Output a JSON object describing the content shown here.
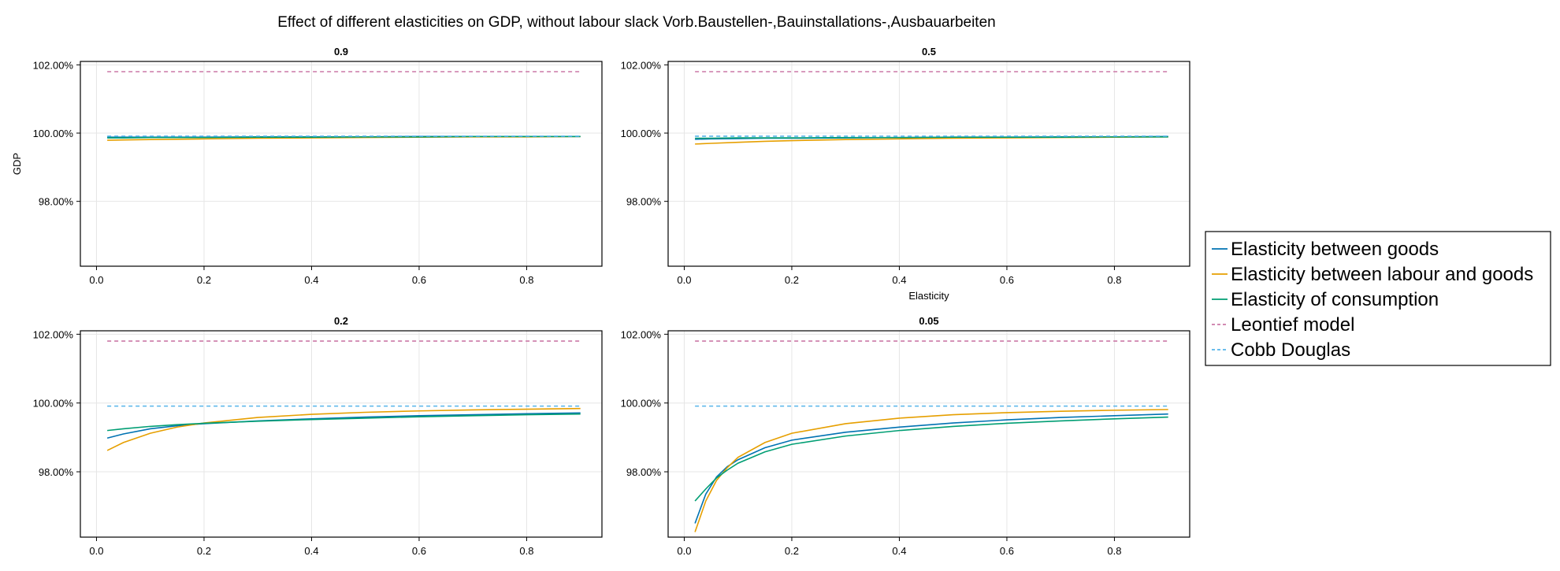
{
  "figure": {
    "title": "Effect of different elasticities on GDP, without labour slack Vorb.Baustellen-,Bauinstallations-,Ausbauarbeiten"
  },
  "legend": {
    "position": "right",
    "entries": [
      {
        "label": "Elasticity between goods",
        "color": "#0072B2",
        "style": "solid"
      },
      {
        "label": "Elasticity between labour and goods",
        "color": "#E69F00",
        "style": "solid"
      },
      {
        "label": "Elasticity of consumption",
        "color": "#009E73",
        "style": "solid"
      },
      {
        "label": "Leontief model",
        "color": "#CC79A7",
        "style": "dashed"
      },
      {
        "label": "Cobb Douglas",
        "color": "#56B4E9",
        "style": "dashed"
      }
    ]
  },
  "chart_data": [
    {
      "type": "line",
      "title": "0.9",
      "xlabel": "",
      "ylabel": "GDP",
      "xlim": [
        -0.03,
        0.94
      ],
      "ylim": [
        96.1,
        102.1
      ],
      "grid": true,
      "x_ticks": [
        "0.0",
        "0.2",
        "0.4",
        "0.6",
        "0.8"
      ],
      "y_ticks": [
        "98.00%",
        "100.00%",
        "102.00%"
      ],
      "x": [
        0.02,
        0.05,
        0.1,
        0.15,
        0.2,
        0.3,
        0.4,
        0.5,
        0.6,
        0.7,
        0.8,
        0.9
      ],
      "series": [
        {
          "name": "Elasticity between goods",
          "values": [
            99.88,
            99.88,
            99.88,
            99.88,
            99.88,
            99.89,
            99.89,
            99.89,
            99.9,
            99.9,
            99.9,
            99.9
          ]
        },
        {
          "name": "Elasticity between labour and goods",
          "values": [
            99.79,
            99.8,
            99.81,
            99.82,
            99.83,
            99.85,
            99.86,
            99.87,
            99.88,
            99.89,
            99.89,
            99.9
          ]
        },
        {
          "name": "Elasticity of consumption",
          "values": [
            99.86,
            99.86,
            99.87,
            99.87,
            99.87,
            99.88,
            99.88,
            99.89,
            99.89,
            99.9,
            99.9,
            99.9
          ]
        },
        {
          "name": "Leontief model",
          "values": [
            101.8,
            101.8,
            101.8,
            101.8,
            101.8,
            101.8,
            101.8,
            101.8,
            101.8,
            101.8,
            101.8,
            101.8
          ]
        },
        {
          "name": "Cobb Douglas",
          "values": [
            99.91,
            99.91,
            99.91,
            99.91,
            99.91,
            99.91,
            99.91,
            99.91,
            99.91,
            99.91,
            99.91,
            99.91
          ]
        }
      ]
    },
    {
      "type": "line",
      "title": "0.5",
      "xlabel": "Elasticity",
      "ylabel": "",
      "xlim": [
        -0.03,
        0.94
      ],
      "ylim": [
        96.1,
        102.1
      ],
      "grid": true,
      "x_ticks": [
        "0.0",
        "0.2",
        "0.4",
        "0.6",
        "0.8"
      ],
      "y_ticks": [
        "98.00%",
        "100.00%",
        "102.00%"
      ],
      "x": [
        0.02,
        0.05,
        0.1,
        0.15,
        0.2,
        0.3,
        0.4,
        0.5,
        0.6,
        0.7,
        0.8,
        0.9
      ],
      "series": [
        {
          "name": "Elasticity between goods",
          "values": [
            99.82,
            99.83,
            99.84,
            99.85,
            99.85,
            99.86,
            99.87,
            99.88,
            99.88,
            99.89,
            99.89,
            99.9
          ]
        },
        {
          "name": "Elasticity between labour and goods",
          "values": [
            99.68,
            99.7,
            99.73,
            99.76,
            99.78,
            99.81,
            99.83,
            99.85,
            99.86,
            99.87,
            99.88,
            99.89
          ]
        },
        {
          "name": "Elasticity of consumption",
          "values": [
            99.85,
            99.85,
            99.86,
            99.86,
            99.86,
            99.87,
            99.87,
            99.88,
            99.88,
            99.88,
            99.89,
            99.89
          ]
        },
        {
          "name": "Leontief model",
          "values": [
            101.8,
            101.8,
            101.8,
            101.8,
            101.8,
            101.8,
            101.8,
            101.8,
            101.8,
            101.8,
            101.8,
            101.8
          ]
        },
        {
          "name": "Cobb Douglas",
          "values": [
            99.91,
            99.91,
            99.91,
            99.91,
            99.91,
            99.91,
            99.91,
            99.91,
            99.91,
            99.91,
            99.91,
            99.91
          ]
        }
      ]
    },
    {
      "type": "line",
      "title": "0.2",
      "xlabel": "",
      "ylabel": "",
      "xlim": [
        -0.03,
        0.94
      ],
      "ylim": [
        96.1,
        102.1
      ],
      "grid": true,
      "x_ticks": [
        "0.0",
        "0.2",
        "0.4",
        "0.6",
        "0.8"
      ],
      "y_ticks": [
        "98.00%",
        "100.00%",
        "102.00%"
      ],
      "x": [
        0.02,
        0.05,
        0.1,
        0.15,
        0.2,
        0.3,
        0.4,
        0.5,
        0.6,
        0.7,
        0.8,
        0.9
      ],
      "series": [
        {
          "name": "Elasticity between goods",
          "values": [
            98.98,
            99.1,
            99.25,
            99.34,
            99.4,
            99.48,
            99.54,
            99.59,
            99.63,
            99.66,
            99.69,
            99.71
          ]
        },
        {
          "name": "Elasticity between labour and goods",
          "values": [
            98.62,
            98.85,
            99.12,
            99.3,
            99.42,
            99.58,
            99.67,
            99.73,
            99.77,
            99.8,
            99.82,
            99.84
          ]
        },
        {
          "name": "Elasticity of consumption",
          "values": [
            99.2,
            99.25,
            99.32,
            99.37,
            99.41,
            99.47,
            99.52,
            99.56,
            99.6,
            99.63,
            99.66,
            99.68
          ]
        },
        {
          "name": "Leontief model",
          "values": [
            101.8,
            101.8,
            101.8,
            101.8,
            101.8,
            101.8,
            101.8,
            101.8,
            101.8,
            101.8,
            101.8,
            101.8
          ]
        },
        {
          "name": "Cobb Douglas",
          "values": [
            99.91,
            99.91,
            99.91,
            99.91,
            99.91,
            99.91,
            99.91,
            99.91,
            99.91,
            99.91,
            99.91,
            99.91
          ]
        }
      ]
    },
    {
      "type": "line",
      "title": "0.05",
      "xlabel": "",
      "ylabel": "",
      "xlim": [
        -0.03,
        0.94
      ],
      "ylim": [
        96.1,
        102.1
      ],
      "grid": true,
      "x_ticks": [
        "0.0",
        "0.2",
        "0.4",
        "0.6",
        "0.8"
      ],
      "y_ticks": [
        "98.00%",
        "100.00%",
        "102.00%"
      ],
      "x": [
        0.02,
        0.04,
        0.06,
        0.08,
        0.1,
        0.15,
        0.2,
        0.3,
        0.4,
        0.5,
        0.6,
        0.7,
        0.8,
        0.9
      ],
      "series": [
        {
          "name": "Elasticity between goods",
          "values": [
            96.5,
            97.35,
            97.85,
            98.15,
            98.35,
            98.7,
            98.92,
            99.15,
            99.3,
            99.42,
            99.51,
            99.58,
            99.63,
            99.68
          ]
        },
        {
          "name": "Elasticity between labour and goods",
          "values": [
            96.25,
            97.15,
            97.75,
            98.12,
            98.42,
            98.85,
            99.12,
            99.4,
            99.56,
            99.66,
            99.72,
            99.76,
            99.79,
            99.81
          ]
        },
        {
          "name": "Elasticity of consumption",
          "values": [
            97.15,
            97.5,
            97.82,
            98.05,
            98.25,
            98.58,
            98.8,
            99.04,
            99.2,
            99.32,
            99.41,
            99.48,
            99.54,
            99.59
          ]
        },
        {
          "name": "Leontief model",
          "values": [
            101.8,
            101.8,
            101.8,
            101.8,
            101.8,
            101.8,
            101.8,
            101.8,
            101.8,
            101.8,
            101.8,
            101.8,
            101.8,
            101.8
          ]
        },
        {
          "name": "Cobb Douglas",
          "values": [
            99.91,
            99.91,
            99.91,
            99.91,
            99.91,
            99.91,
            99.91,
            99.91,
            99.91,
            99.91,
            99.91,
            99.91,
            99.91,
            99.91
          ]
        }
      ]
    }
  ]
}
